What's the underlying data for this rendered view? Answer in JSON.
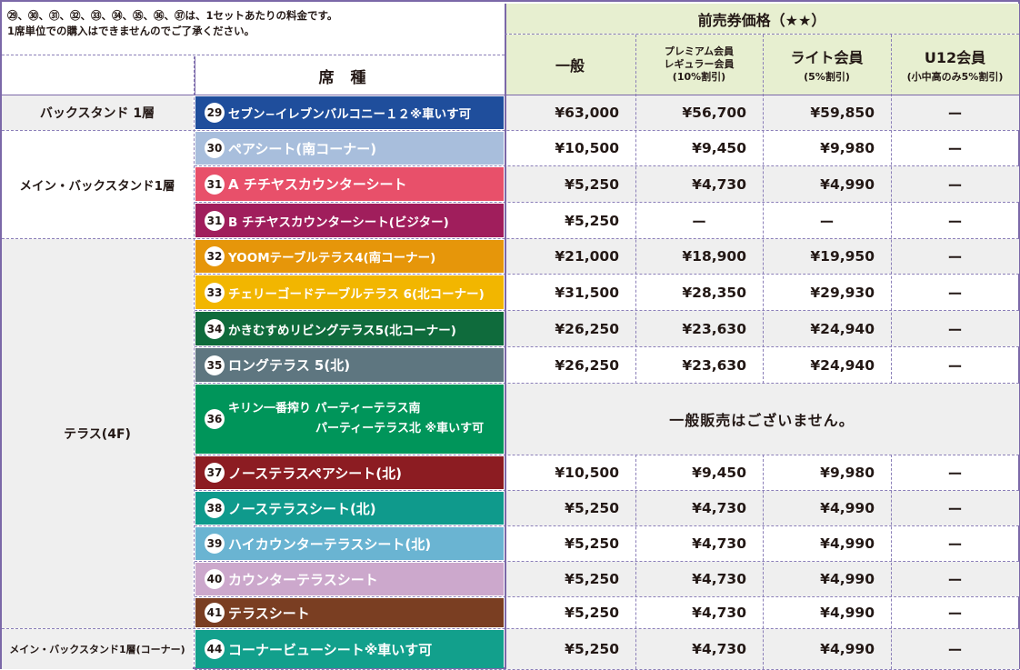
{
  "note": {
    "line1": "㉙、㉚、㉛、㉜、㉝、㉞、㉟、㊱、㊲は、1セットあたりの料金です。",
    "line2": "1席単位での購入はできませんのでご了承ください。"
  },
  "header": {
    "presale": "前売券価格（★★）",
    "seat_type": "席種",
    "general": "一般",
    "premium_line1": "プレミアム会員",
    "premium_line2": "レギュラー会員",
    "premium_line3": "(10%割引)",
    "lite": "ライト会員",
    "lite_sub": "(5%割引)",
    "u12": "U12会員",
    "u12_sub": "(小中高のみ5%割引)"
  },
  "categories": [
    {
      "label": "バックスタンド 1層"
    },
    {
      "label": "メイン・バックスタンド1層"
    },
    {
      "label": "テラス(4F)"
    },
    {
      "label": "メイン・バックスタンド1層(コーナー)"
    }
  ],
  "no_sale": "一般販売はございません。",
  "rows": [
    {
      "num": "29",
      "name": "セブン−イレブンバルコニー１２※車いす可",
      "color": "#1f4e9c",
      "general": "¥63,000",
      "premium": "¥56,700",
      "lite": "¥59,850",
      "u12": "ー"
    },
    {
      "num": "30",
      "name": "ペアシート(南コーナー)",
      "color": "#a8bedc",
      "general": "¥10,500",
      "premium": "¥9,450",
      "lite": "¥9,980",
      "u12": "ー"
    },
    {
      "num": "31",
      "name": "A チチヤスカウンターシート",
      "color": "#e8506a",
      "general": "¥5,250",
      "premium": "¥4,730",
      "lite": "¥4,990",
      "u12": "ー"
    },
    {
      "num": "31",
      "name": "B チチヤスカウンターシート(ビジター)",
      "color": "#a01e5c",
      "general": "¥5,250",
      "premium": "ー",
      "lite": "ー",
      "u12": "ー"
    },
    {
      "num": "32",
      "name": "YOOMテーブルテラス4(南コーナー)",
      "color": "#e6960a",
      "general": "¥21,000",
      "premium": "¥18,900",
      "lite": "¥19,950",
      "u12": "ー"
    },
    {
      "num": "33",
      "name": "チェリーゴードテーブルテラス 6(北コーナー)",
      "color": "#f2b600",
      "general": "¥31,500",
      "premium": "¥28,350",
      "lite": "¥29,930",
      "u12": "ー"
    },
    {
      "num": "34",
      "name": "かきむすめリビングテラス5(北コーナー)",
      "color": "#0f6b3c",
      "general": "¥26,250",
      "premium": "¥23,630",
      "lite": "¥24,940",
      "u12": "ー"
    },
    {
      "num": "35",
      "name": "ロングテラス 5(北)",
      "color": "#5e7680",
      "general": "¥26,250",
      "premium": "¥23,630",
      "lite": "¥24,940",
      "u12": "ー"
    },
    {
      "num": "36",
      "name_line1": "キリン一番搾り パーティーテラス南",
      "name_line2": "パーティーテラス北 ※車いす可",
      "color": "#00955a"
    },
    {
      "num": "37",
      "name": "ノーステラスペアシート(北)",
      "color": "#8c1c22",
      "general": "¥10,500",
      "premium": "¥9,450",
      "lite": "¥9,980",
      "u12": "ー"
    },
    {
      "num": "38",
      "name": "ノーステラスシート(北)",
      "color": "#0f9a8c",
      "general": "¥5,250",
      "premium": "¥4,730",
      "lite": "¥4,990",
      "u12": "ー"
    },
    {
      "num": "39",
      "name": "ハイカウンターテラスシート(北)",
      "color": "#6ab4d2",
      "general": "¥5,250",
      "premium": "¥4,730",
      "lite": "¥4,990",
      "u12": "ー"
    },
    {
      "num": "40",
      "name": "カウンターテラスシート",
      "color": "#cca8cc",
      "general": "¥5,250",
      "premium": "¥4,730",
      "lite": "¥4,990",
      "u12": "ー"
    },
    {
      "num": "41",
      "name": "テラスシート",
      "color": "#7a3e22",
      "general": "¥5,250",
      "premium": "¥4,730",
      "lite": "¥4,990",
      "u12": "ー"
    },
    {
      "num": "44",
      "name": "コーナービューシート※車いす可",
      "color": "#12a08c",
      "general": "¥5,250",
      "premium": "¥4,730",
      "lite": "¥4,990",
      "u12": "ー"
    }
  ]
}
